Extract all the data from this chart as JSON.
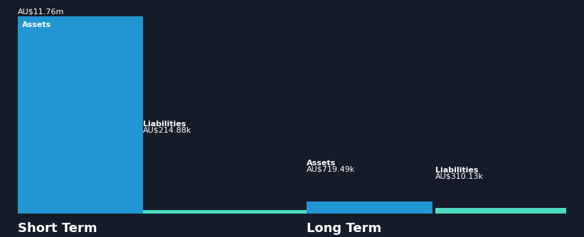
{
  "background_color": "#151c28",
  "short_term": {
    "assets_value": 11760000,
    "assets_label": "Assets",
    "assets_amount_str": "AU$11.76m",
    "liabilities_value": 214880,
    "liabilities_label": "Liabilities",
    "liabilities_amount_str": "AU$214.88k",
    "section_label": "Short Term"
  },
  "long_term": {
    "assets_value": 719490,
    "assets_label": "Assets",
    "assets_amount_str": "AU$719.49k",
    "liabilities_value": 310130,
    "liabilities_label": "Liabilities",
    "liabilities_amount_str": "AU$310.13k",
    "section_label": "Long Term"
  },
  "bar_color_assets": "#2196d3",
  "bar_color_liabilities": "#4dd9c0",
  "text_color": "#ffffff",
  "section_label_fontsize": 13,
  "label_fontsize": 8,
  "value_fontsize": 8
}
